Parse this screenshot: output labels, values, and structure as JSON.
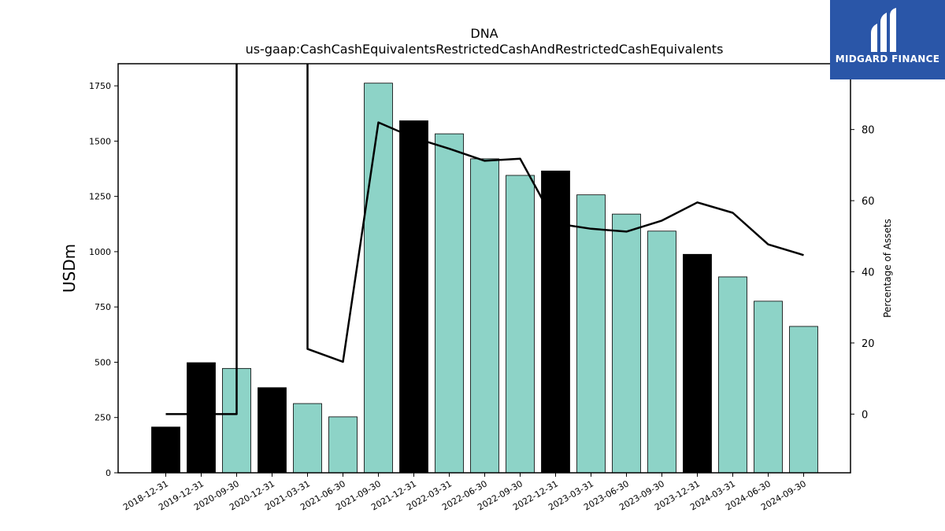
{
  "chart_data": {
    "type": "bar",
    "title": "DNA",
    "subtitle": "us-gaap:CashCashEquivalentsRestrictedCashAndRestrictedCashEquivalents",
    "ylabel": "USDm",
    "y2label": "Percentage of Assets",
    "ylim": [
      0,
      1850
    ],
    "y2lim": [
      -16.5,
      98.5
    ],
    "yticks": [
      0,
      250,
      500,
      750,
      1000,
      1250,
      1500,
      1750
    ],
    "y2ticks": [
      0,
      20,
      40,
      60,
      80
    ],
    "categories": [
      "2018-12-31",
      "2019-12-31",
      "2020-09-30",
      "2020-12-31",
      "2021-03-31",
      "2021-06-30",
      "2021-09-30",
      "2021-12-31",
      "2022-03-31",
      "2022-06-30",
      "2022-09-30",
      "2022-12-31",
      "2023-03-31",
      "2023-06-30",
      "2023-09-30",
      "2023-12-31",
      "2024-03-31",
      "2024-06-30",
      "2024-09-30"
    ],
    "values": [
      207,
      498,
      472,
      385,
      313,
      253,
      1762,
      1592,
      1533,
      1420,
      1345,
      1365,
      1257,
      1170,
      1093,
      988,
      886,
      776,
      662
    ],
    "bar_colors": [
      "#000000",
      "#000000",
      "#8dd3c7",
      "#000000",
      "#8dd3c7",
      "#8dd3c7",
      "#8dd3c7",
      "#000000",
      "#8dd3c7",
      "#8dd3c7",
      "#8dd3c7",
      "#000000",
      "#8dd3c7",
      "#8dd3c7",
      "#8dd3c7",
      "#000000",
      "#8dd3c7",
      "#8dd3c7",
      "#8dd3c7"
    ],
    "series": [
      {
        "values": [
          0,
          0,
          0,
          null,
          18.3,
          14.7,
          82,
          77.7,
          74.6,
          71.2,
          71.8,
          53.6,
          52.1,
          51.3,
          54.4,
          59.5,
          56.6,
          47.7,
          44.7
        ],
        "segments": [
          {
            "x": [
              0,
              1,
              2,
              2
            ],
            "y": [
              0,
              0,
              0,
              98.5
            ]
          },
          {
            "x": [
              4,
              4,
              5,
              6,
              7,
              8,
              9,
              10,
              11,
              12,
              13,
              14,
              15,
              16,
              17,
              18
            ],
            "y": [
              98.5,
              18.3,
              14.7,
              82,
              77.7,
              74.6,
              71.2,
              71.8,
              53.6,
              52.1,
              51.3,
              54.4,
              59.5,
              56.6,
              47.7,
              44.7
            ]
          }
        ],
        "color": "#000000"
      }
    ]
  },
  "logo": {
    "text": "MIDGARD FINANCE",
    "background": "#2a56a8"
  }
}
